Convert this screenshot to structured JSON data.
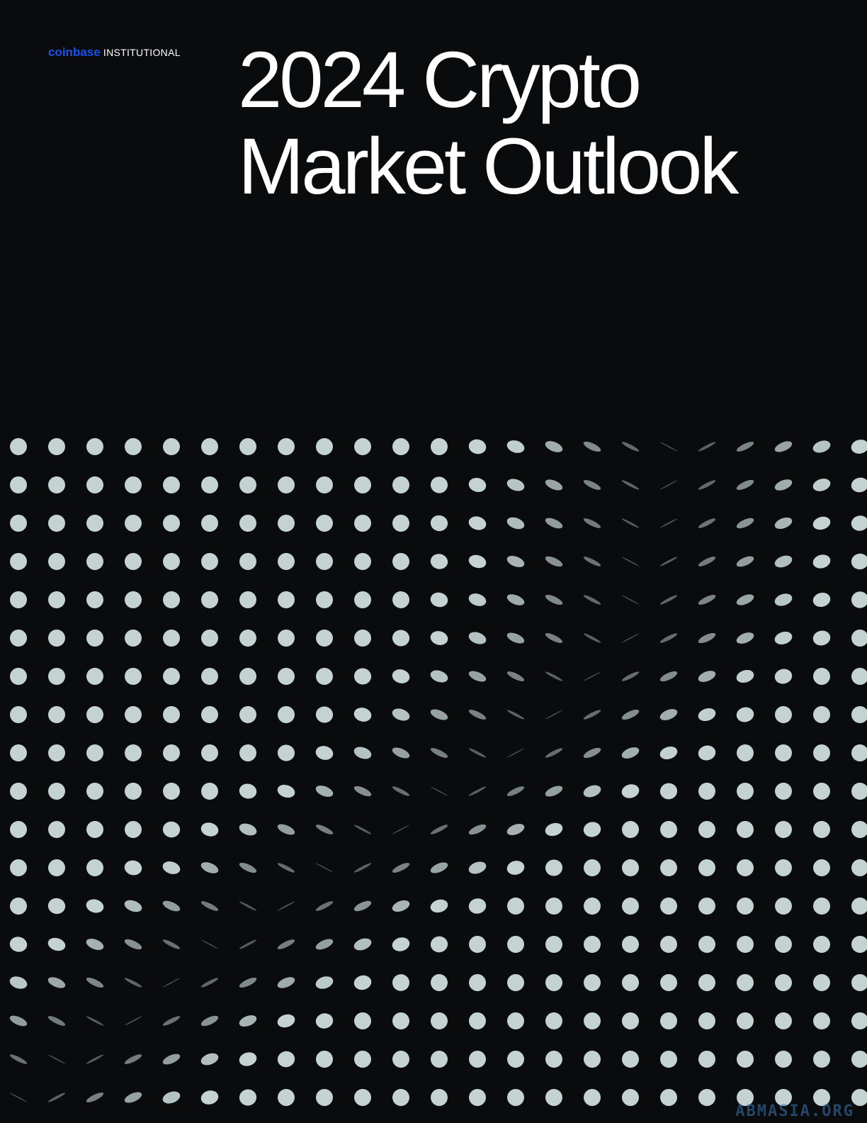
{
  "brand": {
    "name": "coinbase",
    "division": "INSTITUTIONAL"
  },
  "title": {
    "line1": "2024 Crypto",
    "line2": "Market Outlook"
  },
  "watermark": "ABMASIA.ORG"
}
